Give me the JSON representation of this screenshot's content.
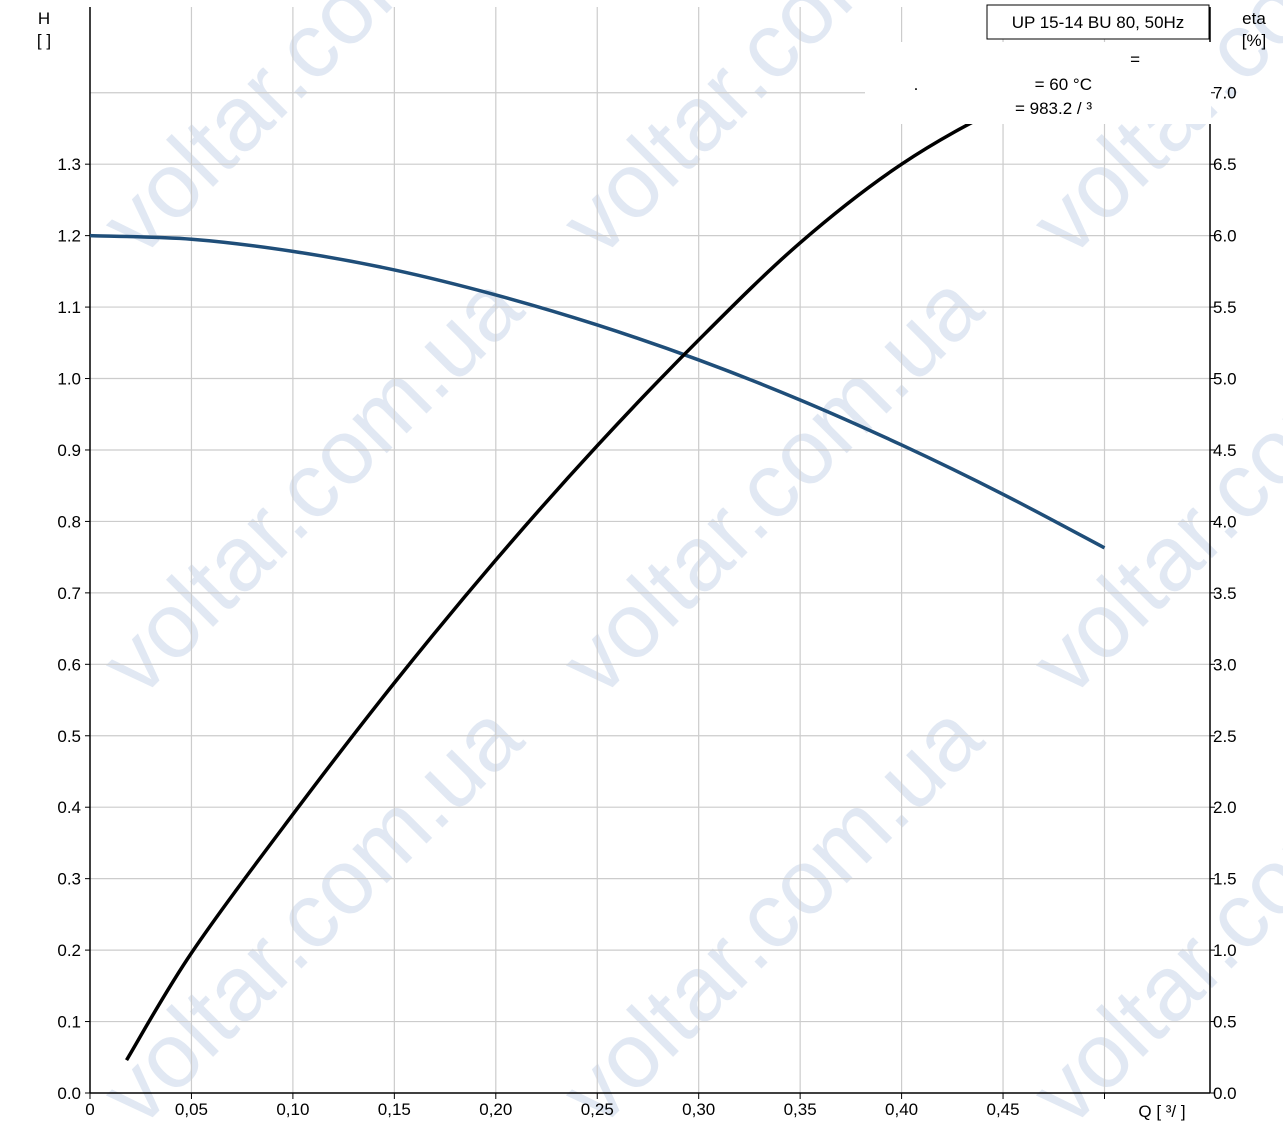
{
  "chart_data": {
    "type": "line",
    "title": "UP 15-14 BU 80, 50Hz",
    "info_lines": [
      "=",
      "= 60 °C",
      "= 983.2   / ³"
    ],
    "info_dot": ".",
    "x_label": "Q [  ³/  ]",
    "y_left_label_top": "H",
    "y_left_label_bottom": "[  ]",
    "y_right_label_top": "eta",
    "y_right_label_bottom": "[%]",
    "x_ticks": [
      "0",
      "0,05",
      "0,10",
      "0,15",
      "0,20",
      "0,25",
      "0,30",
      "0,35",
      "0,40",
      "0,45"
    ],
    "x_tick_values": [
      0,
      0.05,
      0.1,
      0.15,
      0.2,
      0.25,
      0.3,
      0.35,
      0.4,
      0.45
    ],
    "x_grid_values": [
      0.05,
      0.1,
      0.15,
      0.2,
      0.25,
      0.3,
      0.35,
      0.4,
      0.45,
      0.5
    ],
    "xlim": [
      0,
      0.552
    ],
    "y_left_ticks": [
      "0.0",
      "0.1",
      "0.2",
      "0.3",
      "0.4",
      "0.5",
      "0.6",
      "0.7",
      "0.8",
      "0.9",
      "1.0",
      "1.1",
      "1.2",
      "1.3"
    ],
    "y_left_tick_values": [
      0,
      0.1,
      0.2,
      0.3,
      0.4,
      0.5,
      0.6,
      0.7,
      0.8,
      0.9,
      1.0,
      1.1,
      1.2,
      1.3
    ],
    "y_left_grid_values": [
      0.1,
      0.2,
      0.3,
      0.4,
      0.5,
      0.6,
      0.7,
      0.8,
      0.9,
      1.0,
      1.1,
      1.2,
      1.3,
      1.4
    ],
    "ylim_left": [
      0,
      1.52
    ],
    "y_right_ticks": [
      "0.0",
      "0.5",
      "1.0",
      "1.5",
      "2.0",
      "2.5",
      "3.0",
      "3.5",
      "4.0",
      "4.5",
      "5.0",
      "5.5",
      "6.0",
      "6.5",
      "7.0"
    ],
    "y_right_tick_values": [
      0,
      0.5,
      1.0,
      1.5,
      2.0,
      2.5,
      3.0,
      3.5,
      4.0,
      4.5,
      5.0,
      5.5,
      6.0,
      6.5,
      7.0
    ],
    "ylim_right": [
      0,
      7.6
    ],
    "grid": true,
    "series": [
      {
        "axis": "left",
        "color": "#1f4e79",
        "x": [
          0,
          0.05,
          0.1,
          0.15,
          0.2,
          0.25,
          0.3,
          0.35,
          0.4,
          0.45,
          0.5
        ],
        "y": [
          1.2,
          1.195,
          1.178,
          1.152,
          1.117,
          1.075,
          1.026,
          0.97,
          0.907,
          0.838,
          0.763
        ]
      },
      {
        "axis": "right",
        "color": "#000000",
        "x": [
          0.018,
          0.05,
          0.1,
          0.15,
          0.2,
          0.25,
          0.3,
          0.35,
          0.4,
          0.45,
          0.48,
          0.5
        ],
        "y": [
          0.23,
          0.98,
          1.95,
          2.87,
          3.73,
          4.53,
          5.27,
          5.95,
          6.5,
          6.9,
          7.02,
          7.04
        ]
      }
    ],
    "watermark_text": "voltar.com.ua"
  }
}
